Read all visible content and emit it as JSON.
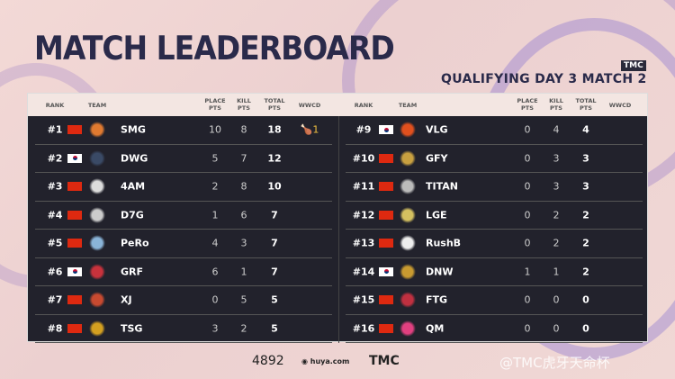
{
  "header": {
    "title": "MATCH LEADERBOARD",
    "subtitle": "QUALIFYING DAY 3  MATCH 2",
    "badge": "TMC"
  },
  "columns": {
    "rank": "RANK",
    "team": "TEAM",
    "place": "PLACE PTS",
    "kill": "KILL PTS",
    "total": "TOTAL PTS",
    "wwcd": "WWCD"
  },
  "left": [
    {
      "rank": "#1",
      "flag": "cn",
      "team": "SMG",
      "place": "10",
      "kill": "8",
      "total": "18",
      "wwcd": "1",
      "logo": "#e07a30"
    },
    {
      "rank": "#2",
      "flag": "kr",
      "team": "DWG",
      "place": "5",
      "kill": "7",
      "total": "12",
      "wwcd": "",
      "logo": "#3a4a66"
    },
    {
      "rank": "#3",
      "flag": "cn",
      "team": "4AM",
      "place": "2",
      "kill": "8",
      "total": "10",
      "wwcd": "",
      "logo": "#dddddd"
    },
    {
      "rank": "#4",
      "flag": "cn",
      "team": "D7G",
      "place": "1",
      "kill": "6",
      "total": "7",
      "wwcd": "",
      "logo": "#cccccc"
    },
    {
      "rank": "#5",
      "flag": "cn",
      "team": "PeRo",
      "place": "4",
      "kill": "3",
      "total": "7",
      "wwcd": "",
      "logo": "#8ab4d8"
    },
    {
      "rank": "#6",
      "flag": "kr",
      "team": "GRF",
      "place": "6",
      "kill": "1",
      "total": "7",
      "wwcd": "",
      "logo": "#c8323c"
    },
    {
      "rank": "#7",
      "flag": "cn",
      "team": "XJ",
      "place": "0",
      "kill": "5",
      "total": "5",
      "wwcd": "",
      "logo": "#c84a30"
    },
    {
      "rank": "#8",
      "flag": "cn",
      "team": "TSG",
      "place": "3",
      "kill": "2",
      "total": "5",
      "wwcd": "",
      "logo": "#d4a020"
    }
  ],
  "right": [
    {
      "rank": "#9",
      "flag": "kr",
      "team": "VLG",
      "place": "0",
      "kill": "4",
      "total": "4",
      "wwcd": "",
      "logo": "#e0501e"
    },
    {
      "rank": "#10",
      "flag": "cn",
      "team": "GFY",
      "place": "0",
      "kill": "3",
      "total": "3",
      "wwcd": "",
      "logo": "#c8a040"
    },
    {
      "rank": "#11",
      "flag": "cn",
      "team": "TITAN",
      "place": "0",
      "kill": "3",
      "total": "3",
      "wwcd": "",
      "logo": "#bbbbbb"
    },
    {
      "rank": "#12",
      "flag": "cn",
      "team": "LGE",
      "place": "0",
      "kill": "2",
      "total": "2",
      "wwcd": "",
      "logo": "#d4c060"
    },
    {
      "rank": "#13",
      "flag": "cn",
      "team": "RushB",
      "place": "0",
      "kill": "2",
      "total": "2",
      "wwcd": "",
      "logo": "#eeeeee"
    },
    {
      "rank": "#14",
      "flag": "kr",
      "team": "DNW",
      "place": "1",
      "kill": "1",
      "total": "2",
      "wwcd": "",
      "logo": "#c89a30"
    },
    {
      "rank": "#15",
      "flag": "cn",
      "team": "FTG",
      "place": "0",
      "kill": "0",
      "total": "0",
      "wwcd": "",
      "logo": "#c03040"
    },
    {
      "rank": "#16",
      "flag": "cn",
      "team": "QM",
      "place": "0",
      "kill": "0",
      "total": "0",
      "wwcd": "",
      "logo": "#e04080"
    }
  ],
  "footer": {
    "studio": "4892",
    "huya": "huya.com",
    "tmc": "TMC",
    "weibo": "@TMC虎牙天命杯"
  }
}
